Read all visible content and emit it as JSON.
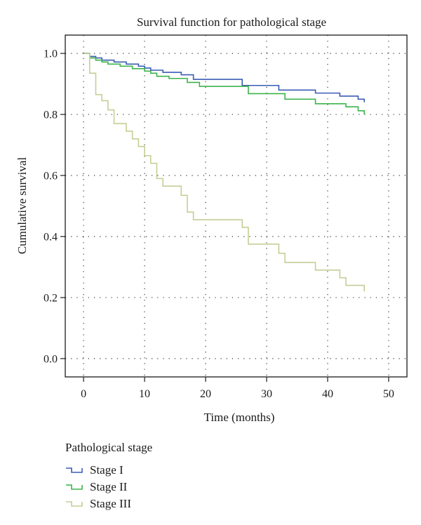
{
  "chart_data": {
    "type": "line",
    "title": "Survival function for pathological stage",
    "xlabel": "Time (months)",
    "ylabel": "Cumulative survival",
    "xlim": [
      -3,
      53
    ],
    "ylim": [
      -0.06,
      1.06
    ],
    "x_ticks": [
      0,
      10,
      20,
      30,
      40,
      50
    ],
    "y_ticks": [
      0.0,
      0.2,
      0.4,
      0.6,
      0.8,
      1.0
    ],
    "y_tick_labels": [
      "0.0",
      "0.2",
      "0.4",
      "0.6",
      "0.8",
      "1.0"
    ],
    "grid": true,
    "step": "post",
    "legend": {
      "title": "Pathological stage",
      "position": "bottom-left"
    },
    "series": [
      {
        "name": "Stage I",
        "color": "#3a5db4",
        "x": [
          0,
          1,
          2,
          3,
          5,
          7,
          9,
          10,
          11,
          13,
          16,
          18,
          26,
          32,
          38,
          42,
          45,
          46
        ],
        "y": [
          1.0,
          0.99,
          0.985,
          0.978,
          0.972,
          0.965,
          0.958,
          0.952,
          0.945,
          0.938,
          0.93,
          0.915,
          0.895,
          0.88,
          0.87,
          0.86,
          0.85,
          0.84
        ]
      },
      {
        "name": "Stage II",
        "color": "#3cb44b",
        "x": [
          0,
          1,
          2,
          3,
          4,
          6,
          8,
          10,
          11,
          12,
          14,
          17,
          19,
          27,
          33,
          38,
          43,
          45,
          46
        ],
        "y": [
          1.0,
          0.985,
          0.978,
          0.972,
          0.965,
          0.958,
          0.95,
          0.942,
          0.935,
          0.925,
          0.918,
          0.905,
          0.892,
          0.868,
          0.85,
          0.835,
          0.825,
          0.812,
          0.8
        ]
      },
      {
        "name": "Stage III",
        "color": "#c4cf95",
        "x": [
          0,
          1,
          2,
          3,
          4,
          5,
          7,
          8,
          9,
          10,
          11,
          12,
          13,
          16,
          17,
          18,
          26,
          27,
          32,
          33,
          38,
          42,
          43,
          44,
          46
        ],
        "y": [
          1.0,
          0.935,
          0.865,
          0.845,
          0.815,
          0.77,
          0.745,
          0.72,
          0.695,
          0.665,
          0.64,
          0.59,
          0.565,
          0.535,
          0.48,
          0.455,
          0.43,
          0.375,
          0.345,
          0.315,
          0.29,
          0.265,
          0.24,
          0.24,
          0.22
        ]
      }
    ]
  }
}
